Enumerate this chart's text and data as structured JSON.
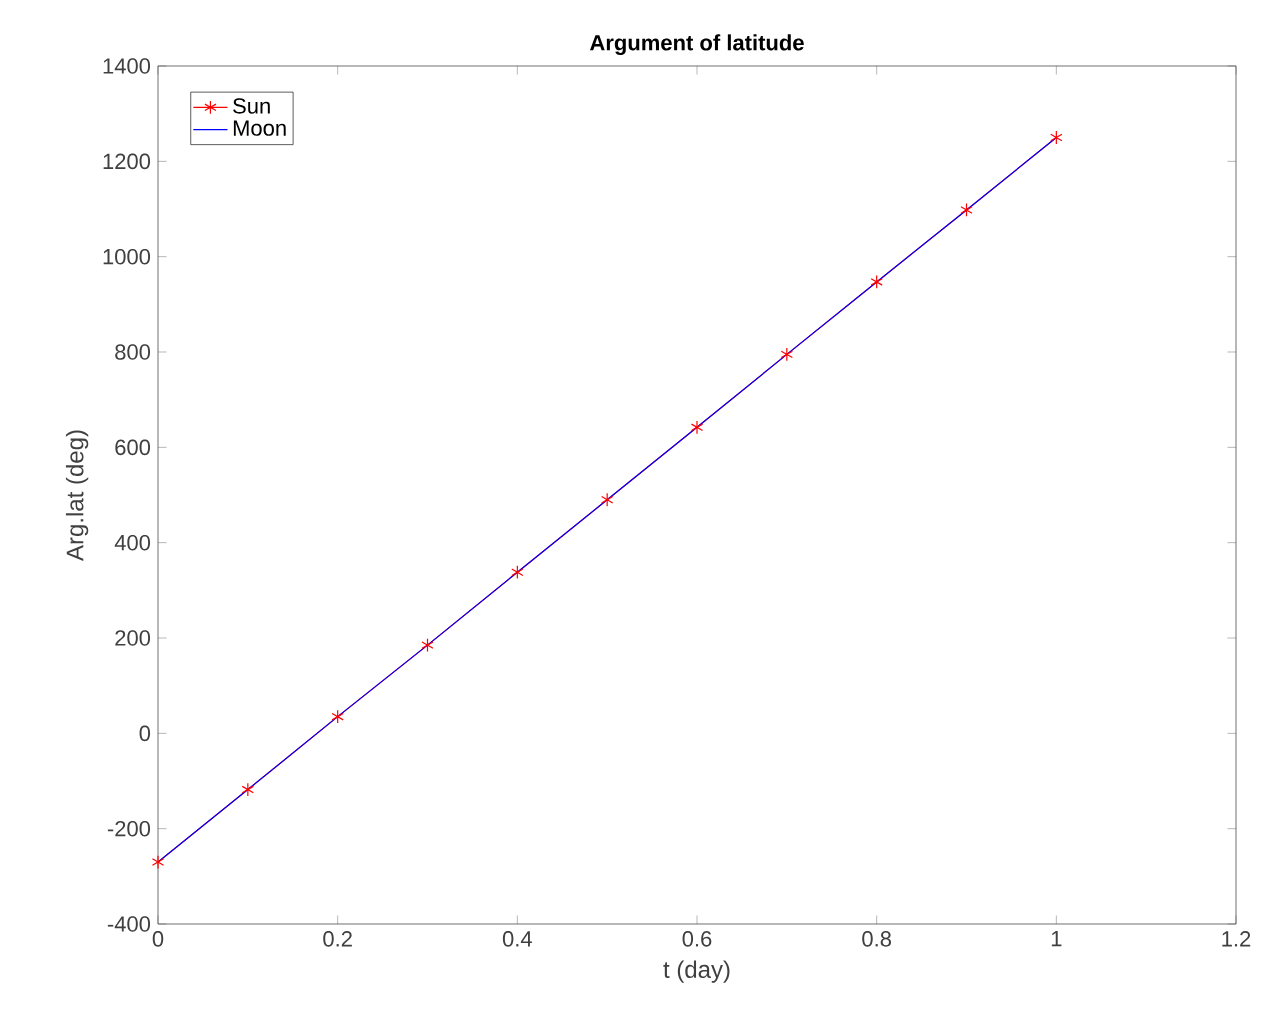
{
  "chart_data": {
    "type": "line",
    "title": "Argument of latitude",
    "xlabel": "t (day)",
    "ylabel": "Arg.lat (deg)",
    "x": [
      0,
      0.1,
      0.2,
      0.3,
      0.4,
      0.5,
      0.6,
      0.7,
      0.8,
      0.9,
      1.0
    ],
    "series": [
      {
        "name": "Sun",
        "color": "#ff0000",
        "marker": "cross",
        "values": [
          -270,
          -118,
          35,
          185,
          338,
          490,
          642,
          795,
          947,
          1098,
          1250
        ]
      },
      {
        "name": "Moon",
        "color": "#0000ff",
        "marker": "none",
        "values": [
          -270,
          -118,
          35,
          185,
          338,
          490,
          642,
          795,
          947,
          1098,
          1250
        ]
      }
    ],
    "xlim": [
      0,
      1.2
    ],
    "xticks": [
      0,
      0.2,
      0.4,
      0.6,
      0.8,
      1,
      1.2
    ],
    "ylim": [
      -400,
      1400
    ],
    "yticks": [
      -400,
      -200,
      0,
      200,
      400,
      600,
      800,
      1000,
      1200,
      1400
    ],
    "grid": false,
    "legend": "top left"
  }
}
